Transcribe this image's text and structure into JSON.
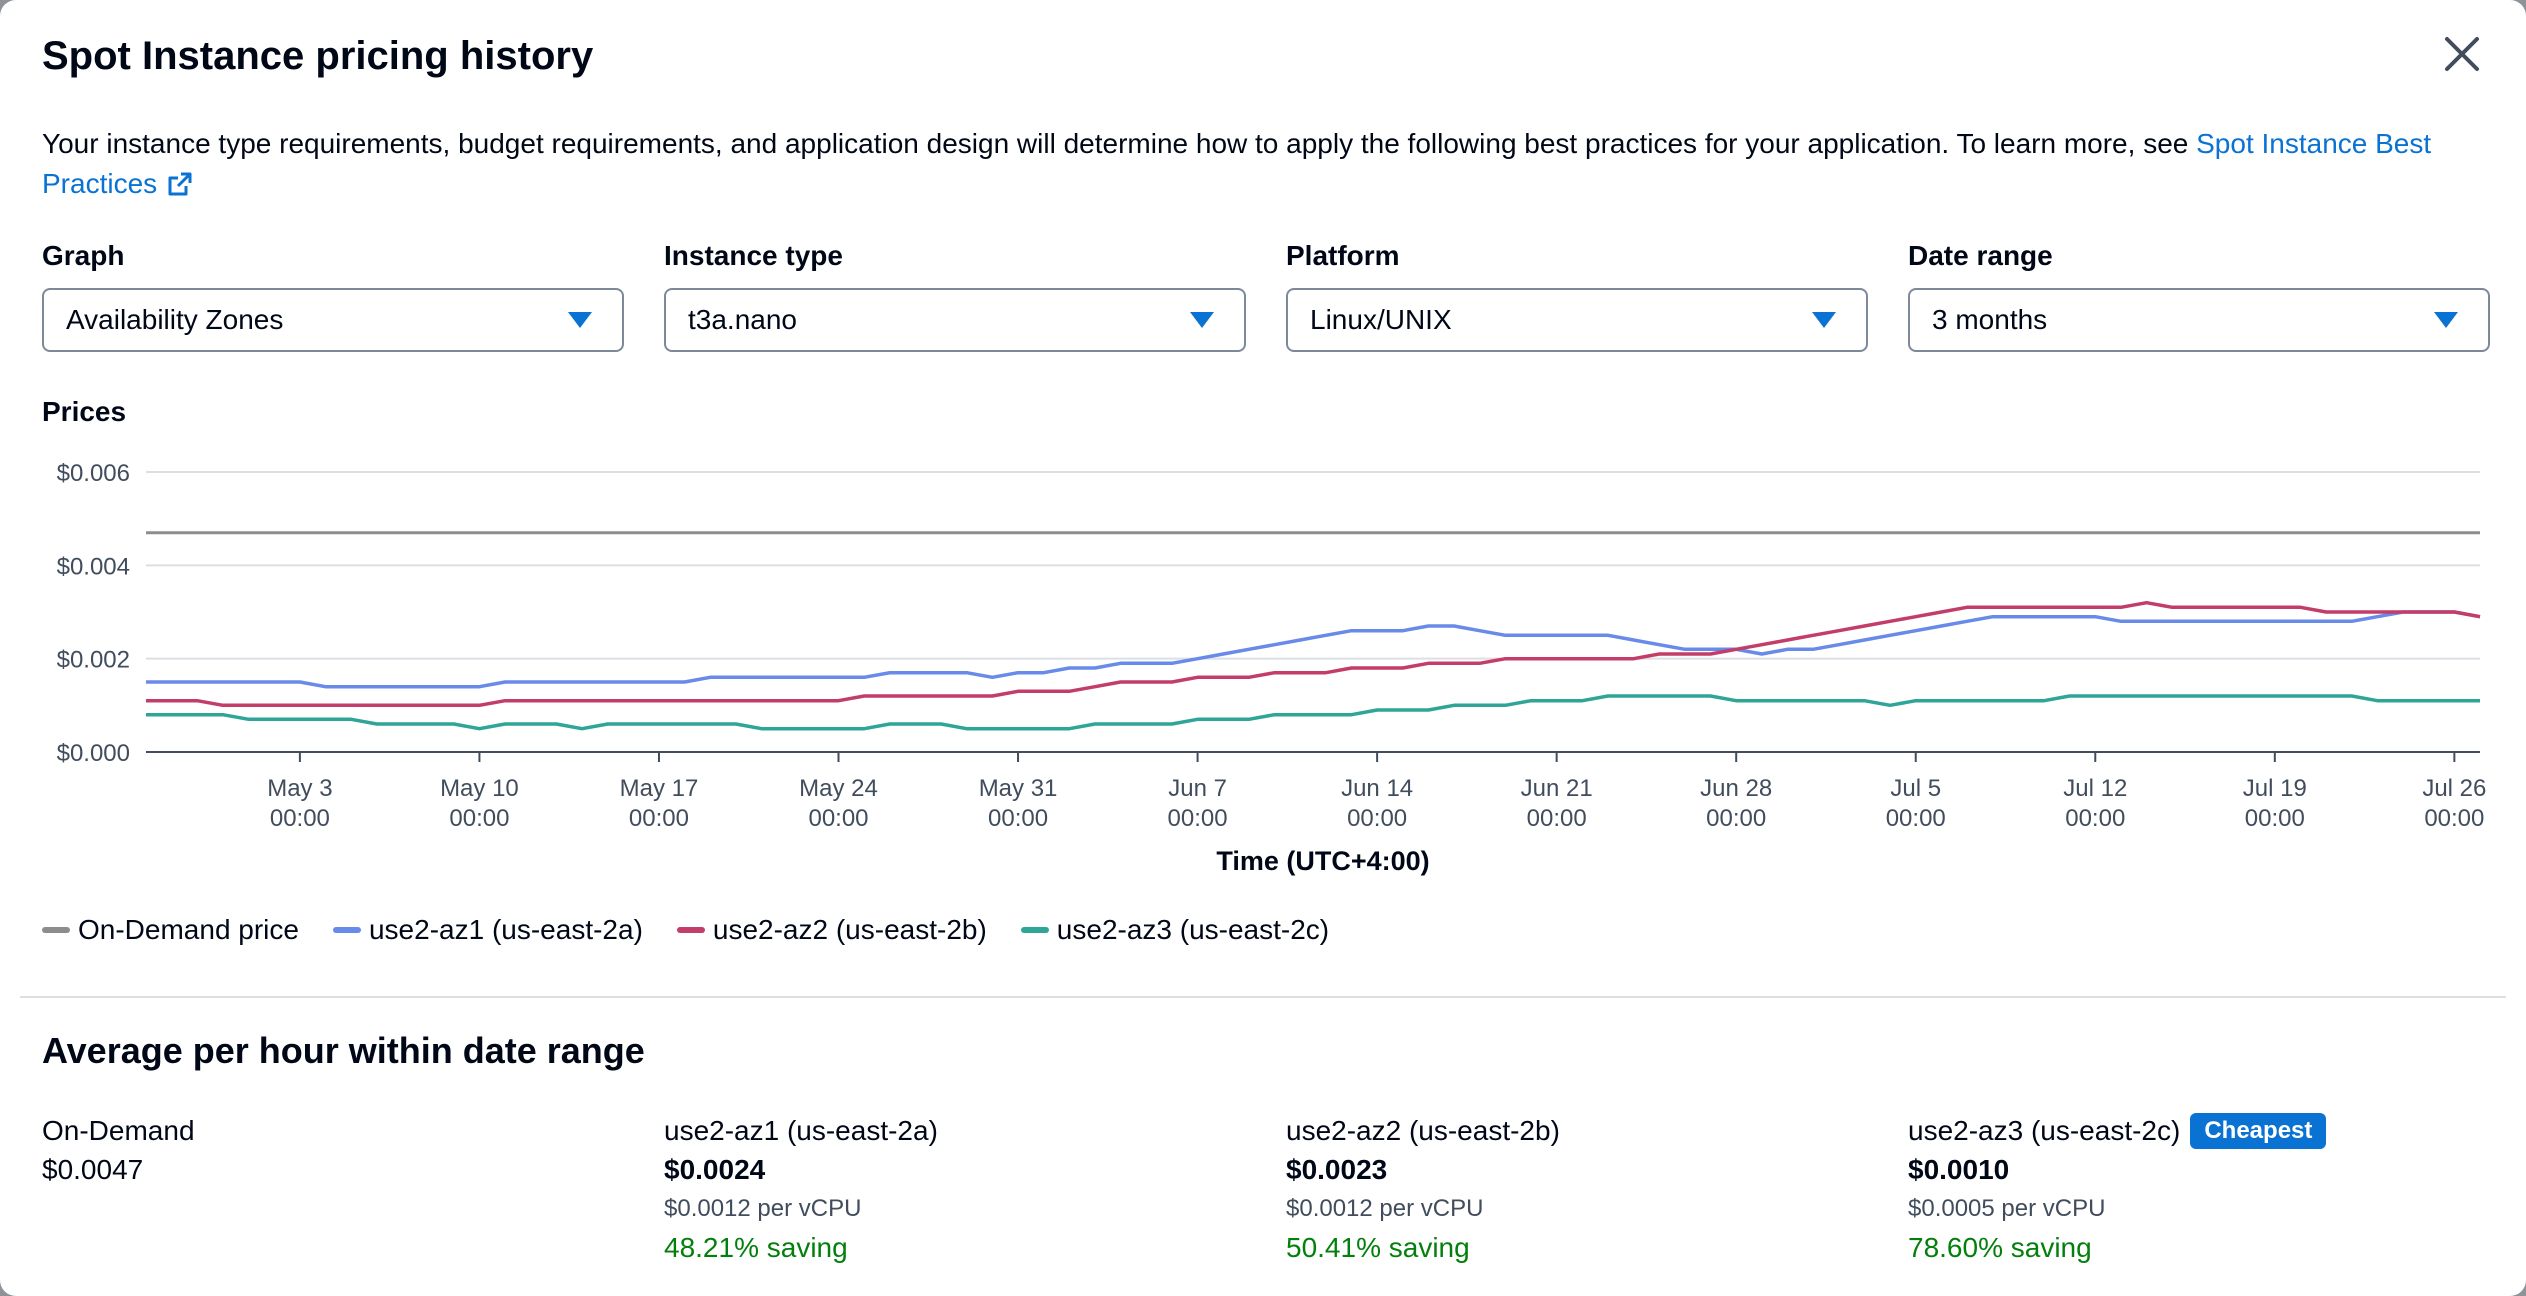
{
  "modal": {
    "title": "Spot Instance pricing history",
    "intro_text": "Your instance type requirements, budget requirements, and application design will determine how to apply the following best practices for your application. To learn more, see ",
    "intro_link": "Spot Instance Best Practices"
  },
  "filters": [
    {
      "label": "Graph",
      "value": "Availability Zones"
    },
    {
      "label": "Instance type",
      "value": "t3a.nano"
    },
    {
      "label": "Platform",
      "value": "Linux/UNIX"
    },
    {
      "label": "Date range",
      "value": "3 months"
    }
  ],
  "chart_label": "Prices",
  "chart_data": {
    "type": "line",
    "xlabel": "Time (UTC+4:00)",
    "x_ticks": [
      {
        "date": "May 3",
        "time": "00:00"
      },
      {
        "date": "May 10",
        "time": "00:00"
      },
      {
        "date": "May 17",
        "time": "00:00"
      },
      {
        "date": "May 24",
        "time": "00:00"
      },
      {
        "date": "May 31",
        "time": "00:00"
      },
      {
        "date": "Jun 7",
        "time": "00:00"
      },
      {
        "date": "Jun 14",
        "time": "00:00"
      },
      {
        "date": "Jun 21",
        "time": "00:00"
      },
      {
        "date": "Jun 28",
        "time": "00:00"
      },
      {
        "date": "Jul 5",
        "time": "00:00"
      },
      {
        "date": "Jul 12",
        "time": "00:00"
      },
      {
        "date": "Jul 19",
        "time": "00:00"
      },
      {
        "date": "Jul 26",
        "time": "00:00"
      }
    ],
    "x_range": [
      "Apr 27",
      "Jul 27"
    ],
    "y_ticks": [
      "$0.000",
      "$0.002",
      "$0.004",
      "$0.006"
    ],
    "ylim": [
      0,
      0.006
    ],
    "grid": true,
    "legend_position": "bottom-left",
    "series": [
      {
        "name": "On-Demand price",
        "color": "#8d8d8d",
        "points": [
          [
            "Apr 27",
            0.0047
          ],
          [
            "Jul 27",
            0.0047
          ]
        ]
      },
      {
        "name": "use2-az1 (us-east-2a)",
        "color": "#688ae8",
        "points": [
          [
            "Apr 27",
            0.0015
          ],
          [
            "May 3",
            0.0015
          ],
          [
            "May 4",
            0.0014
          ],
          [
            "May 10",
            0.0014
          ],
          [
            "May 11",
            0.0015
          ],
          [
            "May 18",
            0.0015
          ],
          [
            "May 19",
            0.0016
          ],
          [
            "May 25",
            0.0016
          ],
          [
            "May 26",
            0.0017
          ],
          [
            "May 29",
            0.0017
          ],
          [
            "May 30",
            0.0016
          ],
          [
            "May 31",
            0.0017
          ],
          [
            "Jun 1",
            0.0017
          ],
          [
            "Jun 2",
            0.0018
          ],
          [
            "Jun 3",
            0.0018
          ],
          [
            "Jun 4",
            0.0019
          ],
          [
            "Jun 6",
            0.0019
          ],
          [
            "Jun 7",
            0.002
          ],
          [
            "Jun 8",
            0.0021
          ],
          [
            "Jun 9",
            0.0022
          ],
          [
            "Jun 10",
            0.0023
          ],
          [
            "Jun 11",
            0.0024
          ],
          [
            "Jun 12",
            0.0025
          ],
          [
            "Jun 13",
            0.0026
          ],
          [
            "Jun 15",
            0.0026
          ],
          [
            "Jun 16",
            0.0027
          ],
          [
            "Jun 17",
            0.0027
          ],
          [
            "Jun 18",
            0.0026
          ],
          [
            "Jun 19",
            0.0025
          ],
          [
            "Jun 23",
            0.0025
          ],
          [
            "Jun 24",
            0.0024
          ],
          [
            "Jun 25",
            0.0023
          ],
          [
            "Jun 26",
            0.0022
          ],
          [
            "Jun 28",
            0.0022
          ],
          [
            "Jun 29",
            0.0021
          ],
          [
            "Jun 30",
            0.0022
          ],
          [
            "Jul 1",
            0.0022
          ],
          [
            "Jul 2",
            0.0023
          ],
          [
            "Jul 3",
            0.0024
          ],
          [
            "Jul 4",
            0.0025
          ],
          [
            "Jul 5",
            0.0026
          ],
          [
            "Jul 6",
            0.0027
          ],
          [
            "Jul 7",
            0.0028
          ],
          [
            "Jul 8",
            0.0029
          ],
          [
            "Jul 12",
            0.0029
          ],
          [
            "Jul 13",
            0.0028
          ],
          [
            "Jul 22",
            0.0028
          ],
          [
            "Jul 23",
            0.0029
          ],
          [
            "Jul 24",
            0.003
          ],
          [
            "Jul 26",
            0.003
          ],
          [
            "Jul 27",
            0.0029
          ]
        ]
      },
      {
        "name": "use2-az2 (us-east-2b)",
        "color": "#c33d69",
        "points": [
          [
            "Apr 27",
            0.0011
          ],
          [
            "Apr 29",
            0.0011
          ],
          [
            "Apr 30",
            0.001
          ],
          [
            "May 10",
            0.001
          ],
          [
            "May 11",
            0.0011
          ],
          [
            "May 24",
            0.0011
          ],
          [
            "May 25",
            0.0012
          ],
          [
            "May 30",
            0.0012
          ],
          [
            "May 31",
            0.0013
          ],
          [
            "Jun 2",
            0.0013
          ],
          [
            "Jun 3",
            0.0014
          ],
          [
            "Jun 4",
            0.0015
          ],
          [
            "Jun 6",
            0.0015
          ],
          [
            "Jun 7",
            0.0016
          ],
          [
            "Jun 9",
            0.0016
          ],
          [
            "Jun 10",
            0.0017
          ],
          [
            "Jun 12",
            0.0017
          ],
          [
            "Jun 13",
            0.0018
          ],
          [
            "Jun 15",
            0.0018
          ],
          [
            "Jun 16",
            0.0019
          ],
          [
            "Jun 18",
            0.0019
          ],
          [
            "Jun 19",
            0.002
          ],
          [
            "Jun 24",
            0.002
          ],
          [
            "Jun 25",
            0.0021
          ],
          [
            "Jun 27",
            0.0021
          ],
          [
            "Jun 28",
            0.0022
          ],
          [
            "Jun 29",
            0.0023
          ],
          [
            "Jun 30",
            0.0024
          ],
          [
            "Jul 1",
            0.0025
          ],
          [
            "Jul 2",
            0.0026
          ],
          [
            "Jul 3",
            0.0027
          ],
          [
            "Jul 4",
            0.0028
          ],
          [
            "Jul 5",
            0.0029
          ],
          [
            "Jul 6",
            0.003
          ],
          [
            "Jul 7",
            0.0031
          ],
          [
            "Jul 13",
            0.0031
          ],
          [
            "Jul 14",
            0.0032
          ],
          [
            "Jul 15",
            0.0031
          ],
          [
            "Jul 20",
            0.0031
          ],
          [
            "Jul 21",
            0.003
          ],
          [
            "Jul 26",
            0.003
          ],
          [
            "Jul 27",
            0.0029
          ]
        ]
      },
      {
        "name": "use2-az3 (us-east-2c)",
        "color": "#2ea597",
        "points": [
          [
            "Apr 27",
            0.0008
          ],
          [
            "Apr 30",
            0.0008
          ],
          [
            "May 1",
            0.0007
          ],
          [
            "May 5",
            0.0007
          ],
          [
            "May 6",
            0.0006
          ],
          [
            "May 9",
            0.0006
          ],
          [
            "May 10",
            0.0005
          ],
          [
            "May 11",
            0.0006
          ],
          [
            "May 13",
            0.0006
          ],
          [
            "May 14",
            0.0005
          ],
          [
            "May 15",
            0.0006
          ],
          [
            "May 20",
            0.0006
          ],
          [
            "May 21",
            0.0005
          ],
          [
            "May 25",
            0.0005
          ],
          [
            "May 26",
            0.0006
          ],
          [
            "May 28",
            0.0006
          ],
          [
            "May 29",
            0.0005
          ],
          [
            "Jun 2",
            0.0005
          ],
          [
            "Jun 3",
            0.0006
          ],
          [
            "Jun 6",
            0.0006
          ],
          [
            "Jun 7",
            0.0007
          ],
          [
            "Jun 9",
            0.0007
          ],
          [
            "Jun 10",
            0.0008
          ],
          [
            "Jun 13",
            0.0008
          ],
          [
            "Jun 14",
            0.0009
          ],
          [
            "Jun 16",
            0.0009
          ],
          [
            "Jun 17",
            0.001
          ],
          [
            "Jun 19",
            0.001
          ],
          [
            "Jun 20",
            0.0011
          ],
          [
            "Jun 22",
            0.0011
          ],
          [
            "Jun 23",
            0.0012
          ],
          [
            "Jun 27",
            0.0012
          ],
          [
            "Jun 28",
            0.0011
          ],
          [
            "Jul 3",
            0.0011
          ],
          [
            "Jul 4",
            0.001
          ],
          [
            "Jul 5",
            0.0011
          ],
          [
            "Jul 10",
            0.0011
          ],
          [
            "Jul 11",
            0.0012
          ],
          [
            "Jul 22",
            0.0012
          ],
          [
            "Jul 23",
            0.0011
          ],
          [
            "Jul 27",
            0.0011
          ]
        ]
      }
    ]
  },
  "averages": {
    "title": "Average per hour within date range",
    "columns": [
      {
        "zone": "On-Demand",
        "price": "$0.0047",
        "bold": false,
        "vcpu": "",
        "saving": "",
        "badge": ""
      },
      {
        "zone": "use2-az1 (us-east-2a)",
        "price": "$0.0024",
        "bold": true,
        "vcpu": "$0.0012 per vCPU",
        "saving": "48.21% saving",
        "badge": ""
      },
      {
        "zone": "use2-az2 (us-east-2b)",
        "price": "$0.0023",
        "bold": true,
        "vcpu": "$0.0012 per vCPU",
        "saving": "50.41% saving",
        "badge": ""
      },
      {
        "zone": "use2-az3 (us-east-2c)",
        "price": "$0.0010",
        "bold": true,
        "vcpu": "$0.0005 per vCPU",
        "saving": "78.60% saving",
        "badge": "Cheapest"
      }
    ]
  },
  "icons": {
    "close": "close-icon",
    "external": "external-link-icon",
    "dropdown": "caret-down-icon"
  },
  "colors": {
    "link": "#0972d3",
    "saving": "#037f0c",
    "badge": "#0972d3"
  }
}
